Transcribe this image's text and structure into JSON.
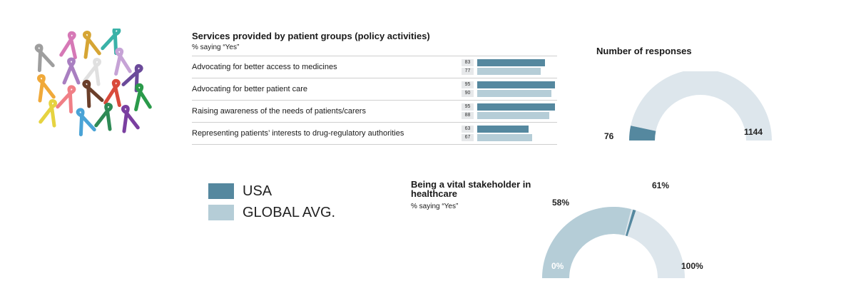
{
  "colors": {
    "usa": "#55889f",
    "global": "#b5cdd7",
    "gauge_track": "#dde6ec"
  },
  "legend": [
    {
      "label": "USA",
      "color": "#55889f"
    },
    {
      "label": "GLOBAL AVG.",
      "color": "#b5cdd7"
    }
  ],
  "chart_data": [
    {
      "type": "bar",
      "title": "Services provided by patient groups (policy activities)",
      "subtitle": "% saying “Yes”",
      "categories": [
        "Advocating for better access to medicines",
        "Advocating for better patient care",
        "Raising awareness of the needs of patients/carers",
        "Representing patients’ interests to drug-regulatory authorities"
      ],
      "series": [
        {
          "name": "USA",
          "values": [
            83,
            95,
            95,
            63
          ]
        },
        {
          "name": "GLOBAL AVG.",
          "values": [
            77,
            90,
            88,
            67
          ]
        }
      ],
      "xlim": [
        0,
        100
      ]
    },
    {
      "type": "gauge",
      "title": "Number of responses",
      "value": 76,
      "total": 1144,
      "value_label": "76",
      "total_label": "1144"
    },
    {
      "type": "gauge",
      "title": "Being a vital stakeholder in healthcare",
      "subtitle": "% saying “Yes”",
      "usa_value": 61,
      "global_value": 58,
      "usa_label": "61%",
      "global_label": "58%",
      "min_label": "0%",
      "max_label": "100%"
    }
  ]
}
